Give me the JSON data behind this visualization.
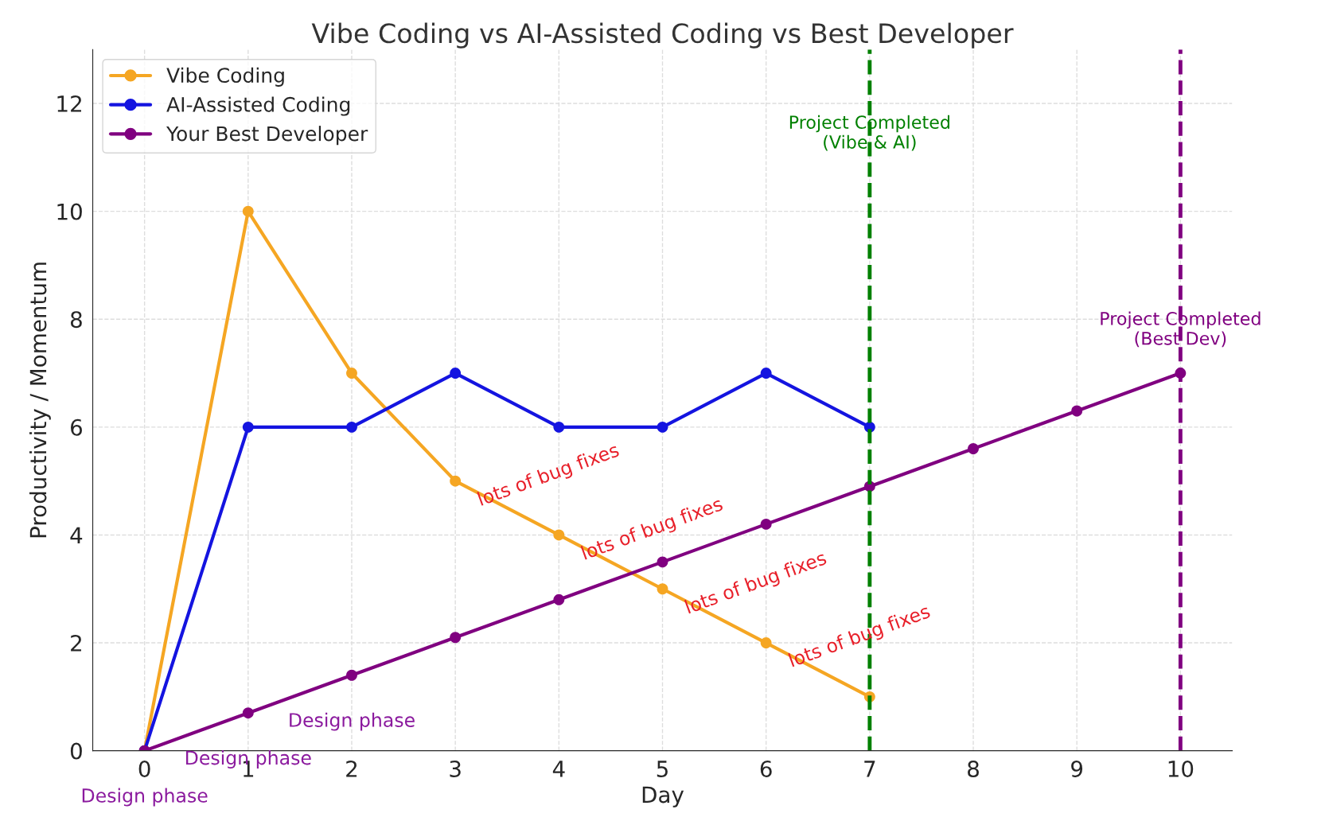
{
  "chart_data": {
    "type": "line",
    "title": "Vibe Coding vs AI-Assisted Coding vs Best Developer",
    "xlabel": "Day",
    "ylabel": "Productivity / Momentum",
    "series": [
      {
        "name": "Vibe Coding",
        "color": "#f5a623",
        "x": [
          0,
          1,
          2,
          3,
          4,
          5,
          6,
          7
        ],
        "values": [
          0,
          10,
          7,
          5,
          4,
          3,
          2,
          1
        ]
      },
      {
        "name": "AI-Assisted Coding",
        "color": "#1414e0",
        "x": [
          0,
          1,
          2,
          3,
          4,
          5,
          6,
          7
        ],
        "values": [
          0,
          6,
          6,
          7,
          6,
          6,
          7,
          6
        ]
      },
      {
        "name": "Your Best Developer",
        "color": "#800080",
        "x": [
          0,
          1,
          2,
          3,
          4,
          5,
          6,
          7,
          8,
          9,
          10
        ],
        "values": [
          0,
          0.7,
          1.4,
          2.1,
          2.8,
          3.5,
          4.2,
          4.9,
          5.6,
          6.3,
          7
        ]
      }
    ],
    "xlim": [
      -0.5,
      10.5
    ],
    "xticks": [
      0,
      1,
      2,
      3,
      4,
      5,
      6,
      7,
      8,
      9,
      10
    ],
    "ylim": [
      0,
      13
    ],
    "yticks": [
      0,
      2,
      4,
      6,
      8,
      10,
      12
    ],
    "ref_lines": [
      {
        "axis": "x",
        "value": 7,
        "label": "Project Completed\n(Vibe & AI)",
        "color": "#008000",
        "line_style": "dashed"
      },
      {
        "axis": "x",
        "value": 10,
        "label": "Project Completed\n(Best Dev)",
        "color": "#800080",
        "line_style": "dashed"
      }
    ],
    "annotations": [
      "lots of bug fixes",
      "lots of bug fixes",
      "lots of bug fixes",
      "lots of bug fixes",
      {
        "text": "Design phase",
        "x": 0,
        "y": 0
      },
      {
        "text": "Design phase",
        "x": 1,
        "y": 0.7
      },
      {
        "text": "Design phase",
        "x": 2,
        "y": 1.4
      }
    ],
    "grid": true,
    "legend": "top left",
    "marker": "circle",
    "line_style": "solid"
  }
}
